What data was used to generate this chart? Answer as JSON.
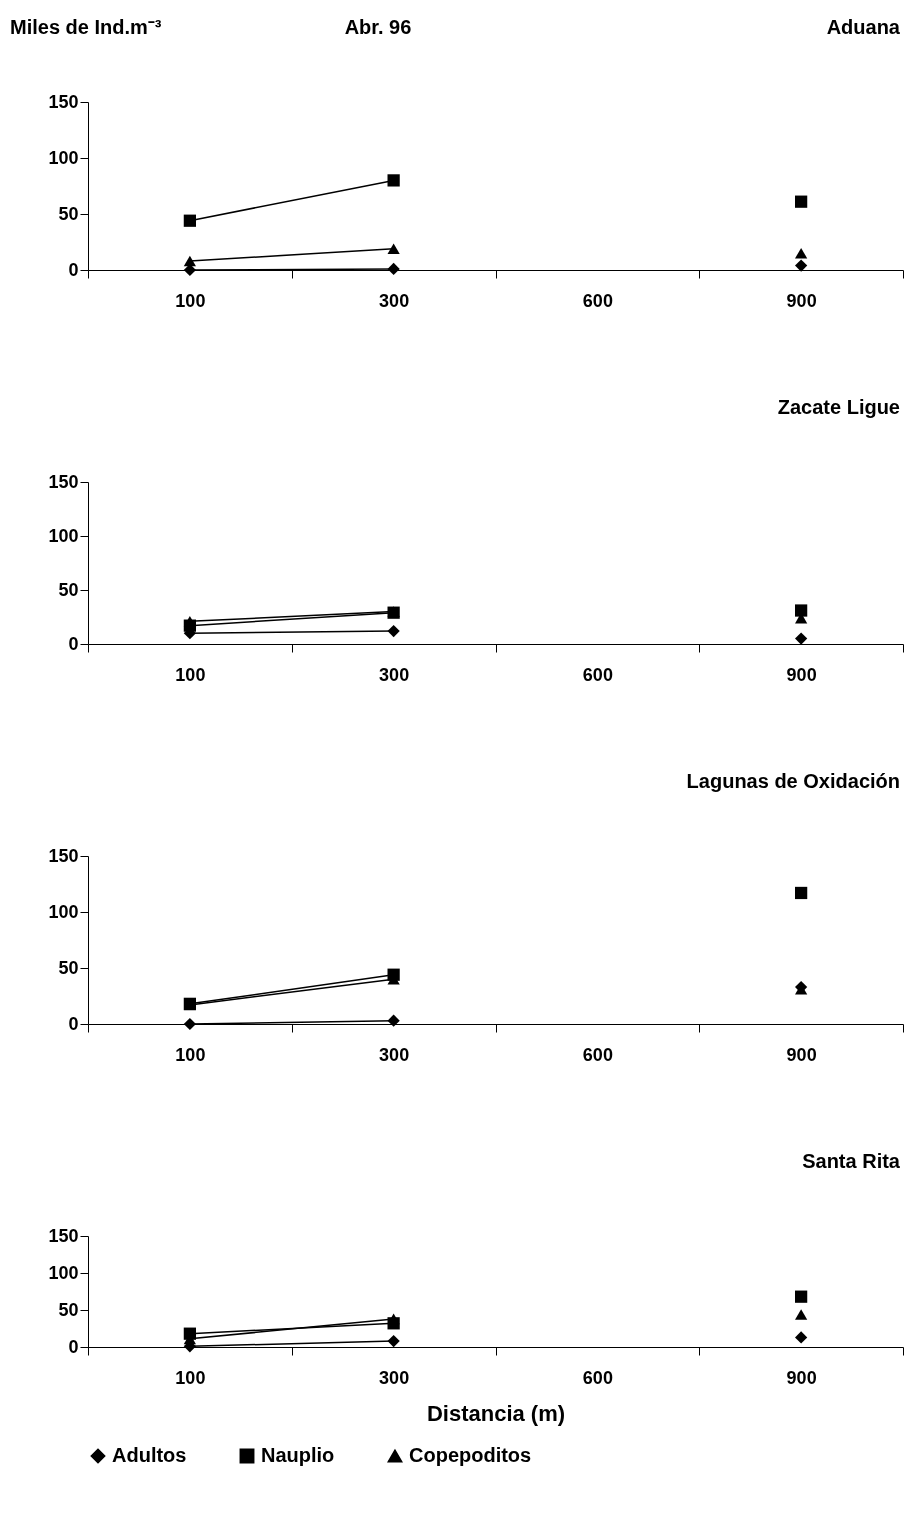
{
  "chart_data": [
    {
      "type": "line",
      "title": "Aduana",
      "ylabel": "Miles de Ind.m⁻³",
      "annotations": [
        "Abr. 96"
      ],
      "categories": [
        "100",
        "300",
        "600",
        "900"
      ],
      "ylim": [
        0,
        150
      ],
      "yticks": [
        0,
        50,
        100,
        150
      ],
      "grid": false,
      "series": [
        {
          "marker": "diamond",
          "color": "#000000",
          "values": [
            0,
            1,
            null,
            4
          ]
        },
        {
          "marker": "square",
          "color": "#000000",
          "values": [
            44,
            80,
            null,
            61
          ]
        },
        {
          "marker": "triangle",
          "color": "#000000",
          "values": [
            8,
            19,
            null,
            15
          ]
        }
      ]
    },
    {
      "type": "line",
      "title": "Zacate Ligue",
      "categories": [
        "100",
        "300",
        "600",
        "900"
      ],
      "ylim": [
        0,
        150
      ],
      "yticks": [
        0,
        50,
        100,
        150
      ],
      "grid": false,
      "series": [
        {
          "marker": "diamond",
          "color": "#000000",
          "values": [
            10,
            12,
            null,
            5
          ]
        },
        {
          "marker": "square",
          "color": "#000000",
          "values": [
            17,
            29,
            null,
            31
          ]
        },
        {
          "marker": "triangle",
          "color": "#000000",
          "values": [
            21,
            30,
            null,
            24
          ]
        }
      ]
    },
    {
      "type": "line",
      "title": "Lagunas de Oxidación",
      "categories": [
        "100",
        "300",
        "600",
        "900"
      ],
      "ylim": [
        0,
        150
      ],
      "yticks": [
        0,
        50,
        100,
        150
      ],
      "grid": false,
      "series": [
        {
          "marker": "diamond",
          "color": "#000000",
          "values": [
            0,
            3,
            null,
            33
          ]
        },
        {
          "marker": "square",
          "color": "#000000",
          "values": [
            18,
            44,
            null,
            117
          ]
        },
        {
          "marker": "triangle",
          "color": "#000000",
          "values": [
            17,
            40,
            null,
            31
          ]
        }
      ]
    },
    {
      "type": "line",
      "title": "Santa Rita",
      "xlabel": "Distancia (m)",
      "categories": [
        "100",
        "300",
        "600",
        "900"
      ],
      "ylim": [
        0,
        150
      ],
      "yticks": [
        0,
        50,
        100,
        150
      ],
      "grid": false,
      "legend": "bottom",
      "series": [
        {
          "name": "Adultos",
          "marker": "diamond",
          "color": "#000000",
          "values": [
            1,
            8,
            null,
            13
          ]
        },
        {
          "name": "Nauplio",
          "marker": "square",
          "color": "#000000",
          "values": [
            18,
            32,
            null,
            68
          ]
        },
        {
          "name": "Copepoditos",
          "marker": "triangle",
          "color": "#000000",
          "values": [
            11,
            38,
            null,
            44
          ]
        }
      ]
    }
  ]
}
